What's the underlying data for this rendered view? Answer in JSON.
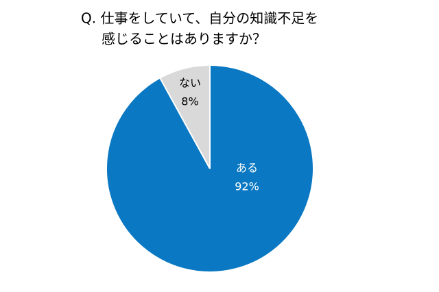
{
  "chart_data": {
    "type": "pie",
    "title": [
      "Q. 仕事をしていて、自分の知識不足を",
      "感じることはありますか？"
    ],
    "categories": [
      "ある",
      "ない"
    ],
    "values": [
      92,
      8
    ],
    "value_labels": [
      "92%",
      "8%"
    ],
    "colors": [
      "#0a78c2",
      "#d9d9d9"
    ],
    "label_colors": [
      "#ffffff",
      "#000000"
    ]
  }
}
